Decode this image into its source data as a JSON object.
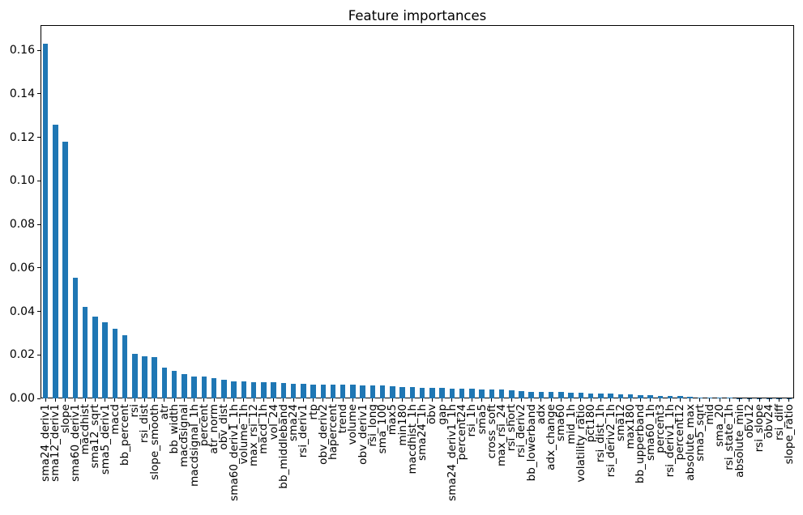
{
  "figure": {
    "background": "#ffffff",
    "spine_color": "#000000",
    "text_color": "#000000"
  },
  "chart_data": {
    "type": "bar",
    "title": "Feature importances",
    "xlabel": "",
    "ylabel": "",
    "bar_color": "#1f77b4",
    "grid": false,
    "legend": null,
    "ylim": [
      0,
      0.1716
    ],
    "yticks": [
      0.0,
      0.02,
      0.04,
      0.06,
      0.08,
      0.1,
      0.12,
      0.14,
      0.16
    ],
    "ytick_labels": [
      "0.00",
      "0.02",
      "0.04",
      "0.06",
      "0.08",
      "0.10",
      "0.12",
      "0.14",
      "0.16"
    ],
    "categories": [
      "sma24_deriv1",
      "sma12_deriv1",
      "slope",
      "sma60_deriv1",
      "macdhist",
      "sma12_sqrt",
      "sma5_deriv1",
      "macd",
      "bb_percent",
      "rsi",
      "rsi_dist",
      "slope_smooth",
      "atr",
      "bb_width",
      "macdsignal",
      "macdsignal_1h",
      "percent",
      "atr_norm",
      "obv_dist",
      "sma60_deriv1_1h",
      "volume_1h",
      "max_rsi_12",
      "macd_1h",
      "vol_24",
      "bb_middleband",
      "sma24",
      "rsi_deriv1",
      "rtp",
      "obv_deriv2",
      "hapercent",
      "trend",
      "volume",
      "obv_deriv1",
      "rsi_long",
      "sma_100",
      "max5",
      "min180",
      "macdhist_1h",
      "sma24_1h",
      "obv",
      "gap",
      "sma24_deriv1_1h",
      "percent24",
      "rsi_1h",
      "sma5",
      "cross_soft",
      "max_rsi_24",
      "rsi_short",
      "rsi_deriv2",
      "bb_lowerband",
      "adx",
      "adx_change",
      "sma60",
      "mid_1h",
      "volatility_ratio",
      "pct180",
      "rsi_dist_1h",
      "rsi_deriv2_1h",
      "sma12",
      "max180",
      "bb_upperband",
      "sma60_1h",
      "percent3",
      "rsi_deriv1_1h",
      "percent12",
      "absolute_max",
      "sma5_sqrt",
      "mid",
      "sma_20",
      "rsi_state_1h",
      "absolute_min",
      "obv12",
      "rsi_slope",
      "obv24",
      "rsi_diff",
      "slope_ratio"
    ],
    "values": [
      0.163,
      0.126,
      0.118,
      0.0555,
      0.042,
      0.0375,
      0.035,
      0.032,
      0.029,
      0.0205,
      0.0193,
      0.0191,
      0.014,
      0.0125,
      0.0113,
      0.0102,
      0.0101,
      0.0094,
      0.0087,
      0.008,
      0.0079,
      0.0076,
      0.0075,
      0.0073,
      0.0069,
      0.0068,
      0.0066,
      0.0065,
      0.0064,
      0.0063,
      0.0063,
      0.0062,
      0.0061,
      0.006,
      0.0059,
      0.0057,
      0.0053,
      0.0051,
      0.005,
      0.0049,
      0.0048,
      0.0046,
      0.0044,
      0.0043,
      0.0042,
      0.0041,
      0.004,
      0.0036,
      0.0033,
      0.0031,
      0.003,
      0.0029,
      0.0028,
      0.0027,
      0.0025,
      0.0024,
      0.0023,
      0.0022,
      0.0019,
      0.0017,
      0.0016,
      0.0015,
      0.0013,
      0.0012,
      0.001,
      0.0007,
      0.0004,
      0.0003,
      0.00025,
      0.0002,
      0.00015,
      0.0001,
      0.0001,
      8e-05,
      5e-05,
      3e-05
    ]
  }
}
